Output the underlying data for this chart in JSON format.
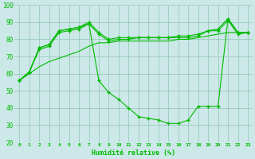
{
  "xlabel": "Humidité relative (%)",
  "bg_color": "#cce8e8",
  "grid_color": "#99ccbb",
  "line_color": "#00bb00",
  "x_labels": [
    "0",
    "1",
    "2",
    "3",
    "4",
    "5",
    "6",
    "7",
    "8",
    "9",
    "10",
    "11",
    "12",
    "13",
    "14",
    "15",
    "16",
    "17",
    "18",
    "19",
    "20",
    "21",
    "22",
    "23"
  ],
  "ylim": [
    20,
    100
  ],
  "yticks": [
    20,
    30,
    40,
    50,
    60,
    70,
    80,
    90,
    100
  ],
  "line_max": [
    56,
    61,
    75,
    77,
    85,
    86,
    87,
    90,
    84,
    80,
    81,
    81,
    81,
    81,
    81,
    81,
    81,
    81,
    82,
    85,
    86,
    92,
    84,
    84
  ],
  "line_avg": [
    56,
    61,
    75,
    77,
    85,
    86,
    87,
    89,
    83,
    79,
    80,
    80,
    81,
    81,
    81,
    81,
    82,
    82,
    83,
    85,
    85,
    91,
    83,
    84
  ],
  "line_min": [
    56,
    61,
    74,
    76,
    84,
    85,
    86,
    89,
    56,
    49,
    45,
    40,
    35,
    34,
    33,
    31,
    31,
    33,
    41,
    41,
    41,
    92,
    84,
    84
  ],
  "line_diag": [
    56,
    60,
    64,
    67,
    69,
    71,
    73,
    76,
    78,
    78,
    79,
    79,
    79,
    79,
    79,
    79,
    80,
    80,
    81,
    82,
    83,
    84,
    84,
    84
  ]
}
